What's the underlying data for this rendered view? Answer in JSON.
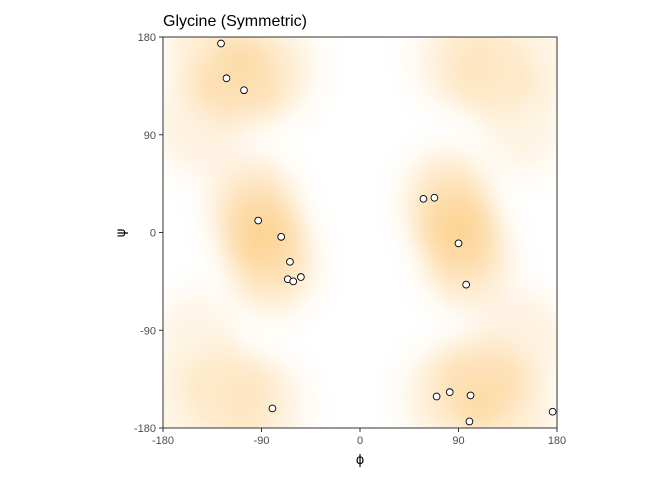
{
  "chart_data": {
    "type": "scatter",
    "title": "Glycine (Symmetric)",
    "xlabel": "ϕ",
    "ylabel": "ψ",
    "xlim": [
      -180,
      180
    ],
    "ylim": [
      -180,
      180
    ],
    "xticks": [
      -180,
      -90,
      0,
      90,
      180
    ],
    "yticks": [
      -180,
      -90,
      0,
      90,
      180
    ],
    "grid": false,
    "colors": {
      "density": "#fbb040",
      "point_fill": "#ffffff",
      "point_stroke": "#000000",
      "frame": "#333333"
    },
    "density_regions": [
      {
        "phi": -90,
        "psi": 0,
        "level": 0.9
      },
      {
        "phi": -80,
        "psi": -30,
        "level": 0.85
      },
      {
        "phi": -100,
        "psi": 30,
        "level": 0.7
      },
      {
        "phi": -110,
        "psi": 140,
        "level": 0.8
      },
      {
        "phi": -80,
        "psi": 150,
        "level": 0.65
      },
      {
        "phi": -140,
        "psi": 170,
        "level": 0.6
      },
      {
        "phi": -150,
        "psi": 100,
        "level": 0.5
      },
      {
        "phi": -120,
        "psi": -150,
        "level": 0.6
      },
      {
        "phi": -90,
        "psi": -160,
        "level": 0.55
      },
      {
        "phi": -150,
        "psi": -100,
        "level": 0.45
      },
      {
        "phi": 90,
        "psi": 0,
        "level": 0.9
      },
      {
        "phi": 80,
        "psi": 30,
        "level": 0.85
      },
      {
        "phi": 100,
        "psi": -30,
        "level": 0.7
      },
      {
        "phi": 110,
        "psi": -140,
        "level": 0.8
      },
      {
        "phi": 80,
        "psi": -150,
        "level": 0.65
      },
      {
        "phi": 140,
        "psi": -170,
        "level": 0.6
      },
      {
        "phi": 150,
        "psi": -100,
        "level": 0.5
      },
      {
        "phi": 120,
        "psi": 150,
        "level": 0.6
      },
      {
        "phi": 90,
        "psi": 160,
        "level": 0.55
      },
      {
        "phi": 150,
        "psi": 100,
        "level": 0.45
      },
      {
        "phi": 170,
        "psi": 170,
        "level": 0.4
      },
      {
        "phi": -170,
        "psi": -170,
        "level": 0.4
      }
    ],
    "points": [
      {
        "phi": -127,
        "psi": 174
      },
      {
        "phi": -122,
        "psi": 142
      },
      {
        "phi": -106,
        "psi": 131
      },
      {
        "phi": -93,
        "psi": 11
      },
      {
        "phi": -72,
        "psi": -4
      },
      {
        "phi": -64,
        "psi": -27
      },
      {
        "phi": -66,
        "psi": -43
      },
      {
        "phi": -61,
        "psi": -45
      },
      {
        "phi": -54,
        "psi": -41
      },
      {
        "phi": -80,
        "psi": -162
      },
      {
        "phi": 58,
        "psi": 31
      },
      {
        "phi": 68,
        "psi": 32
      },
      {
        "phi": 90,
        "psi": -10
      },
      {
        "phi": 97,
        "psi": -48
      },
      {
        "phi": 70,
        "psi": -151
      },
      {
        "phi": 82,
        "psi": -147
      },
      {
        "phi": 101,
        "psi": -150
      },
      {
        "phi": 100,
        "psi": -174
      },
      {
        "phi": 176,
        "psi": -165
      }
    ]
  }
}
